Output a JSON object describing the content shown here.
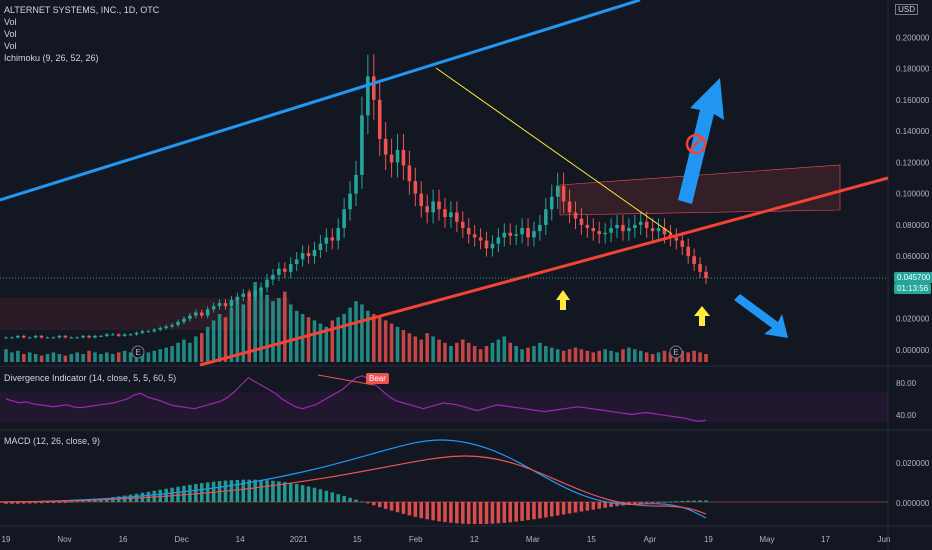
{
  "header": {
    "title": "ALTERNET SYSTEMS, INC., 1D, OTC",
    "studies": [
      "Vol",
      "Vol",
      "Vol",
      "Ichimoku (9, 26, 52, 26)"
    ],
    "currency": "USD"
  },
  "price_badge": {
    "value": "0.045700",
    "countdown": "01:13:56",
    "color": "#26a69a"
  },
  "divergence": {
    "title": "Divergence Indicator (14, close, 5, 5, 60, 5)",
    "label": "Bear",
    "levels": [
      "80.00",
      "40.00"
    ]
  },
  "macd": {
    "title": "MACD (12, 26, close, 9)",
    "levels": [
      "0.020000",
      "0.000000"
    ]
  },
  "events": [
    "E",
    "E"
  ],
  "colors": {
    "up": "#26a69a",
    "down": "#ef5350",
    "blue_line": "#2196f3",
    "red_line": "#f44336",
    "yellow": "#ffeb3b",
    "rsi": "#9c27b0"
  },
  "chart_data": {
    "type": "candlestick",
    "price_axis": [
      "0.200000",
      "0.180000",
      "0.160000",
      "0.140000",
      "0.120000",
      "0.100000",
      "0.080000",
      "0.060000",
      "0.040000",
      "0.020000",
      "0.000000"
    ],
    "time_axis": [
      "19",
      "Nov",
      "16",
      "Dec",
      "14",
      "2021",
      "15",
      "Feb",
      "12",
      "Mar",
      "15",
      "Apr",
      "19",
      "May",
      "17",
      "Jun"
    ],
    "ylim": [
      0,
      0.22
    ],
    "close": [
      0.008,
      0.008,
      0.009,
      0.008,
      0.008,
      0.009,
      0.008,
      0.008,
      0.008,
      0.009,
      0.008,
      0.008,
      0.008,
      0.009,
      0.008,
      0.009,
      0.009,
      0.01,
      0.01,
      0.009,
      0.01,
      0.01,
      0.011,
      0.012,
      0.012,
      0.013,
      0.014,
      0.015,
      0.016,
      0.018,
      0.02,
      0.022,
      0.024,
      0.022,
      0.026,
      0.028,
      0.03,
      0.028,
      0.032,
      0.034,
      0.036,
      0.034,
      0.038,
      0.04,
      0.045,
      0.048,
      0.052,
      0.05,
      0.055,
      0.058,
      0.062,
      0.06,
      0.064,
      0.068,
      0.072,
      0.07,
      0.078,
      0.09,
      0.1,
      0.112,
      0.15,
      0.175,
      0.16,
      0.135,
      0.125,
      0.12,
      0.128,
      0.118,
      0.108,
      0.1,
      0.092,
      0.088,
      0.095,
      0.09,
      0.085,
      0.088,
      0.082,
      0.078,
      0.074,
      0.072,
      0.07,
      0.065,
      0.068,
      0.072,
      0.075,
      0.073,
      0.074,
      0.078,
      0.072,
      0.076,
      0.08,
      0.09,
      0.098,
      0.105,
      0.095,
      0.088,
      0.084,
      0.08,
      0.078,
      0.076,
      0.074,
      0.075,
      0.078,
      0.08,
      0.076,
      0.078,
      0.08,
      0.082,
      0.078,
      0.076,
      0.078,
      0.074,
      0.072,
      0.07,
      0.066,
      0.06,
      0.055,
      0.05,
      0.046
    ],
    "volume": [
      8,
      6,
      7,
      5,
      6,
      5,
      4,
      5,
      6,
      5,
      4,
      5,
      6,
      5,
      7,
      6,
      5,
      6,
      5,
      6,
      7,
      6,
      8,
      7,
      6,
      7,
      8,
      9,
      10,
      12,
      14,
      12,
      16,
      18,
      22,
      26,
      30,
      28,
      34,
      40,
      36,
      44,
      50,
      46,
      42,
      38,
      40,
      44,
      36,
      32,
      30,
      28,
      26,
      24,
      22,
      26,
      28,
      30,
      34,
      38,
      36,
      32,
      30,
      28,
      26,
      24,
      22,
      20,
      18,
      16,
      14,
      18,
      16,
      14,
      12,
      10,
      12,
      14,
      12,
      10,
      8,
      10,
      12,
      14,
      16,
      12,
      10,
      8,
      9,
      10,
      12,
      10,
      9,
      8,
      7,
      8,
      9,
      8,
      7,
      6,
      7,
      8,
      7,
      6,
      8,
      9,
      8,
      7,
      6,
      5,
      6,
      7,
      6,
      8,
      7,
      6,
      7,
      6,
      5
    ],
    "rsi": [
      60,
      58,
      56,
      57,
      55,
      54,
      53,
      52,
      53,
      54,
      52,
      51,
      52,
      53,
      54,
      55,
      56,
      58,
      60,
      64,
      66,
      62,
      60,
      58,
      55,
      53,
      52,
      51,
      50,
      52,
      54,
      56,
      58,
      62,
      68,
      75,
      82,
      78,
      74,
      70,
      66,
      60,
      56,
      52,
      50,
      52,
      54,
      58,
      62,
      66,
      70,
      76,
      82,
      84,
      80,
      74,
      68,
      62,
      58,
      56,
      54,
      52,
      50,
      52,
      54,
      56,
      55,
      54,
      52,
      50,
      48,
      50,
      52,
      54,
      53,
      52,
      51,
      50,
      49,
      48,
      47,
      48,
      49,
      50,
      51,
      52,
      51,
      50,
      49,
      48,
      47,
      46,
      45,
      44,
      45,
      46,
      45,
      44,
      43,
      42,
      41,
      40,
      38,
      37,
      38
    ]
  }
}
